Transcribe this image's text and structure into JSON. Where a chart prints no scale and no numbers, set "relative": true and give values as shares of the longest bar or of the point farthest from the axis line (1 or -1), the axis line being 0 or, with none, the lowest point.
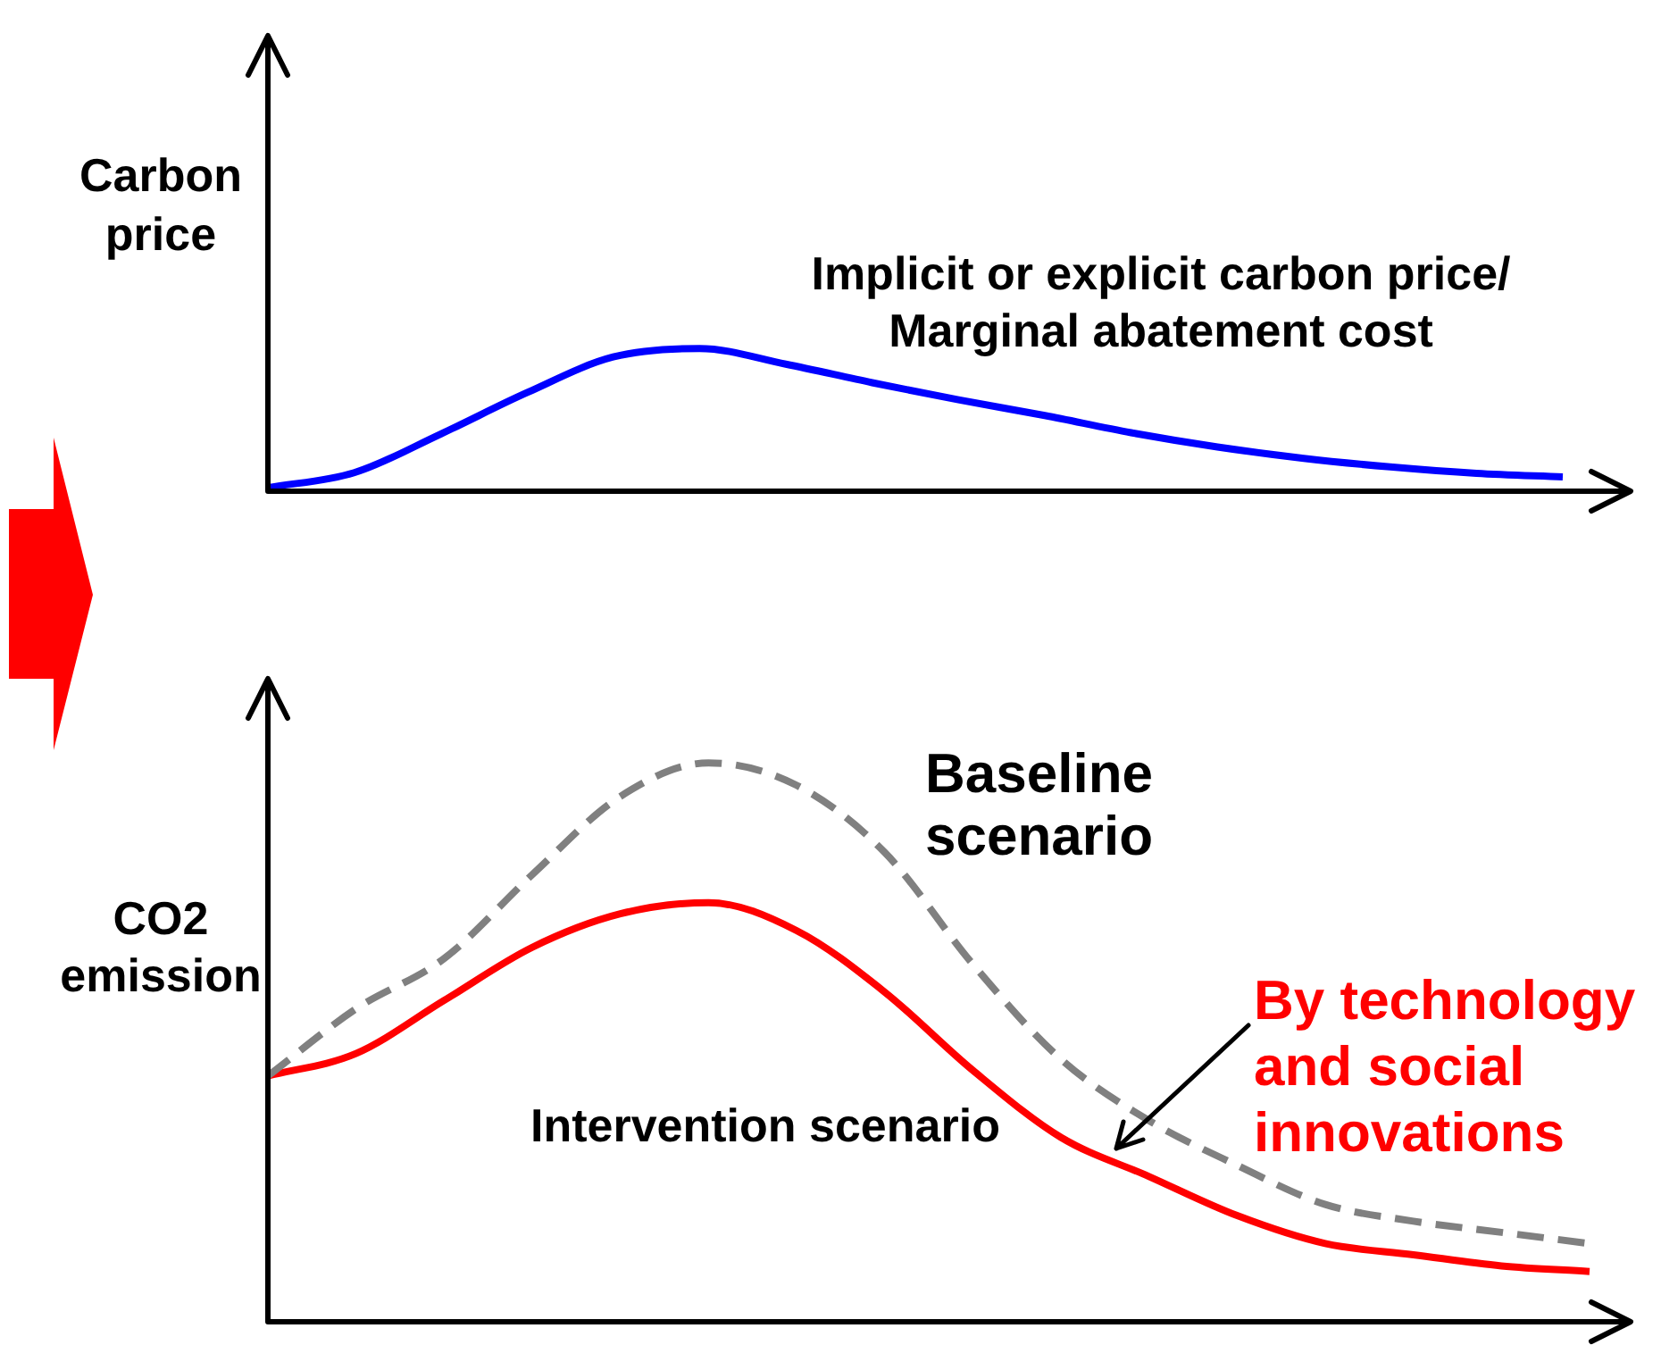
{
  "chart_data": [
    {
      "type": "line",
      "relative": true,
      "ylabel": "Carbon price",
      "annotations": [
        "Implicit or explicit carbon price/ Marginal abatement cost"
      ],
      "categories": [
        null,
        null,
        null,
        null,
        null,
        null,
        null,
        null,
        null,
        null,
        null,
        null,
        null,
        null,
        null,
        null
      ],
      "series": [
        {
          "color": "#0000ff",
          "values": [
            0.025,
            0.13,
            0.4,
            0.69,
            0.94,
            1,
            0.89,
            0.76,
            0.64,
            0.53,
            0.41,
            0.31,
            0.23,
            0.17,
            0.125,
            0.1
          ]
        }
      ]
    },
    {
      "type": "line",
      "relative": true,
      "ylabel": "CO2 emission",
      "annotations": [
        "By technology and social innovations"
      ],
      "categories": [
        null,
        null,
        null,
        null,
        null,
        null,
        null,
        null,
        null,
        null,
        null,
        null,
        null,
        null,
        null,
        null
      ],
      "series": [
        {
          "name": "Baseline scenario",
          "color": "#808080",
          "line_style": "dashed",
          "values": [
            0.44,
            0.56,
            0.65,
            0.8,
            0.94,
            1,
            0.96,
            0.84,
            0.64,
            0.47,
            0.36,
            0.28,
            0.21,
            0.18,
            0.16,
            0.14
          ]
        },
        {
          "name": "Intervention scenario",
          "color": "#ff0000",
          "values": [
            0.44,
            0.48,
            0.575,
            0.67,
            0.73,
            0.75,
            0.7,
            0.59,
            0.45,
            0.33,
            0.26,
            0.19,
            0.14,
            0.12,
            0.1,
            0.09
          ]
        }
      ]
    }
  ]
}
